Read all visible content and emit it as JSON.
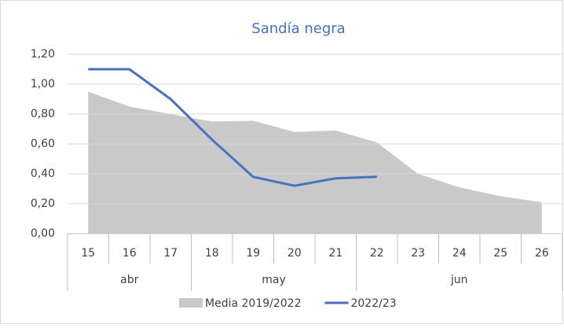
{
  "chart_data": {
    "type": "area_line",
    "title": "Sandía negra",
    "categories": [
      "15",
      "16",
      "17",
      "18",
      "19",
      "20",
      "21",
      "22",
      "23",
      "24",
      "25",
      "26"
    ],
    "x_groups": [
      {
        "label": "abr",
        "count": 3
      },
      {
        "label": "may",
        "count": 4
      },
      {
        "label": "jun",
        "count": 5
      }
    ],
    "series": [
      {
        "name": "Media 2019/2022",
        "kind": "area",
        "color": "#c9c9c9",
        "values": [
          0.95,
          0.85,
          0.8,
          0.75,
          0.755,
          0.68,
          0.69,
          0.61,
          0.4,
          0.31,
          0.25,
          0.21
        ]
      },
      {
        "name": "2022/23",
        "kind": "line",
        "color": "#4472c4",
        "values": [
          1.1,
          1.1,
          0.9,
          0.63,
          0.38,
          0.32,
          0.37,
          0.38,
          null,
          null,
          null,
          null
        ]
      }
    ],
    "ylim": [
      0,
      1.2
    ],
    "yticks": [
      {
        "value": 0,
        "label": "0,00"
      },
      {
        "value": 0.2,
        "label": "0,20"
      },
      {
        "value": 0.4,
        "label": "0,40"
      },
      {
        "value": 0.6,
        "label": "0,60"
      },
      {
        "value": 0.8,
        "label": "0,80"
      },
      {
        "value": 1.0,
        "label": "1,00"
      },
      {
        "value": 1.2,
        "label": "1,20"
      }
    ],
    "grid": true,
    "legend": "bottom"
  }
}
